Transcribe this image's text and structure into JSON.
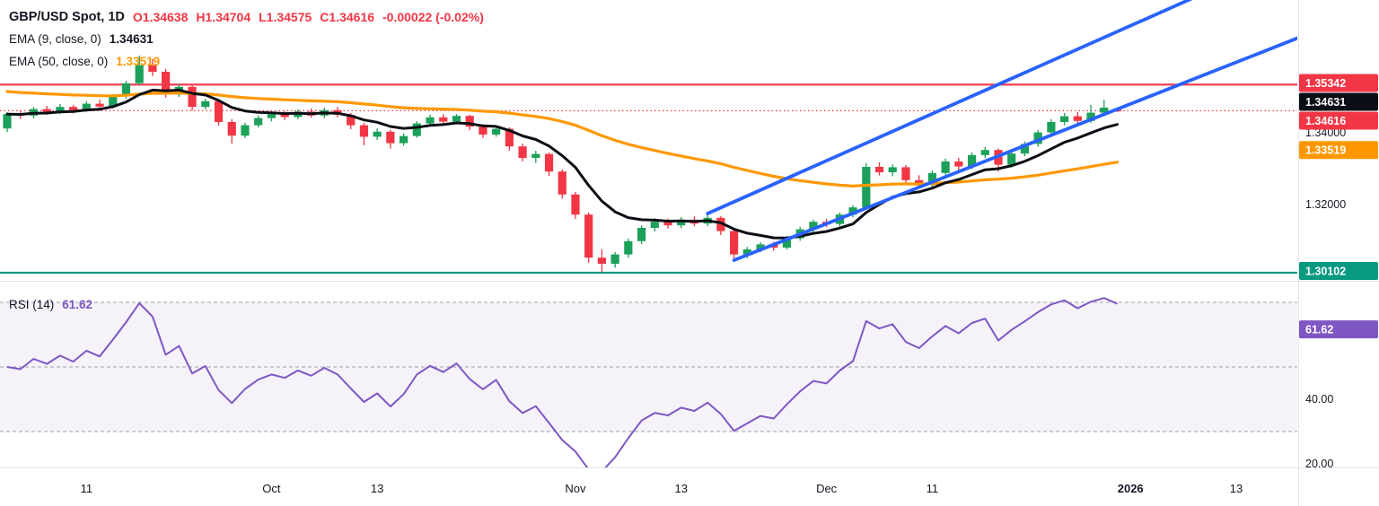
{
  "header": {
    "symbol": "GBP/USD Spot, 1D",
    "open": "O1.34638",
    "high": "H1.34704",
    "low": "L1.34575",
    "close": "C1.34616",
    "change": "-0.00022 (-0.02%)"
  },
  "indicators": {
    "ema9": {
      "label": "EMA (9, close, 0)",
      "value": "1.34631"
    },
    "ema50": {
      "label": "EMA (50, close, 0)",
      "value": "1.33519"
    },
    "rsi": {
      "label": "RSI (14)",
      "value": "61.62"
    }
  },
  "chart_data": {
    "type": "candlestick",
    "symbol": "GBP/USD Spot",
    "timeframe": "1D",
    "colors": {
      "up": "#1da05a",
      "down": "#f23645",
      "ema9": "#0c0e15",
      "ema50": "#ff9800",
      "rsi": "#7e57c2",
      "trend": "#2962ff"
    },
    "y_ticks": [
      {
        "label": "1.34000",
        "price": 1.34
      },
      {
        "label": "1.32000",
        "price": 1.32
      }
    ],
    "price_labels": [
      {
        "text": "1.35342",
        "price": 1.35342,
        "color": "#f23645"
      },
      {
        "text": "1.34631",
        "price": 1.34631,
        "color": "#0c0e15"
      },
      {
        "text": "1.34616",
        "price": 1.34616,
        "color": "#f23645"
      },
      {
        "text": "1.33519",
        "price": 1.33519,
        "color": "#ff9800"
      },
      {
        "text": "1.30102",
        "price": 1.30102,
        "color": "#089981"
      }
    ],
    "levels": [
      {
        "name": "resistance-line",
        "price": 1.35342,
        "color": "#f23645",
        "style": "solid"
      },
      {
        "name": "last-price-line",
        "price": 1.34616,
        "color": "#f23645",
        "style": "dotted"
      },
      {
        "name": "support-line",
        "price": 1.30102,
        "color": "#089981",
        "style": "solid"
      }
    ],
    "trendlines": [
      {
        "name": "channel-upper-trendline",
        "color": "#2962ff",
        "i1": 53,
        "p1": 1.3175,
        "i2": 90,
        "p2": 1.378
      },
      {
        "name": "channel-lower-trendline",
        "color": "#2962ff",
        "i1": 55,
        "p1": 1.3045,
        "i2": 98,
        "p2": 1.3669
      }
    ],
    "x_ticks": [
      {
        "label": "11",
        "i": 6
      },
      {
        "label": "Oct",
        "i": 20
      },
      {
        "label": "13",
        "i": 28
      },
      {
        "label": "Nov",
        "i": 43
      },
      {
        "label": "13",
        "i": 51
      },
      {
        "label": "Dec",
        "i": 62
      },
      {
        "label": "11",
        "i": 70
      },
      {
        "label": "2026",
        "i": 85,
        "strong": true
      },
      {
        "label": "13",
        "i": 93
      }
    ],
    "ema_periods": [
      9,
      50
    ],
    "rsi": {
      "period": 14,
      "band": [
        30,
        70
      ],
      "guides": [
        30,
        50,
        70
      ],
      "ticks": [
        {
          "label": "40.00",
          "value": 40
        },
        {
          "label": "20.00",
          "value": 20
        }
      ],
      "label_box": {
        "text": "61.62",
        "value": 61.62
      }
    },
    "candles": [
      [
        1.3412,
        1.3458,
        1.3402,
        1.3452
      ],
      [
        1.3452,
        1.3462,
        1.3438,
        1.3448
      ],
      [
        1.3448,
        1.3472,
        1.344,
        1.3466
      ],
      [
        1.3466,
        1.3475,
        1.345,
        1.3458
      ],
      [
        1.3458,
        1.348,
        1.3452,
        1.3472
      ],
      [
        1.3472,
        1.3478,
        1.3454,
        1.3463
      ],
      [
        1.3463,
        1.3488,
        1.3458,
        1.3481
      ],
      [
        1.3481,
        1.3492,
        1.3465,
        1.3473
      ],
      [
        1.3473,
        1.3508,
        1.3468,
        1.3502
      ],
      [
        1.3502,
        1.3545,
        1.3495,
        1.3538
      ],
      [
        1.3538,
        1.3615,
        1.3532,
        1.3588
      ],
      [
        1.3588,
        1.3605,
        1.3558,
        1.357
      ],
      [
        1.357,
        1.3578,
        1.3498,
        1.3508
      ],
      [
        1.3508,
        1.3535,
        1.35,
        1.3528
      ],
      [
        1.3528,
        1.3532,
        1.3462,
        1.3472
      ],
      [
        1.3472,
        1.3495,
        1.3465,
        1.3488
      ],
      [
        1.3488,
        1.3492,
        1.342,
        1.343
      ],
      [
        1.343,
        1.3438,
        1.337,
        1.3392
      ],
      [
        1.3392,
        1.3428,
        1.3385,
        1.3421
      ],
      [
        1.3421,
        1.3448,
        1.3415,
        1.3441
      ],
      [
        1.3441,
        1.3458,
        1.3432,
        1.3452
      ],
      [
        1.3452,
        1.346,
        1.3436,
        1.3444
      ],
      [
        1.3444,
        1.3465,
        1.3438,
        1.3459
      ],
      [
        1.3459,
        1.3468,
        1.3442,
        1.3448
      ],
      [
        1.3448,
        1.347,
        1.3441,
        1.3463
      ],
      [
        1.3463,
        1.3472,
        1.3443,
        1.345
      ],
      [
        1.345,
        1.3455,
        1.341,
        1.3421
      ],
      [
        1.3421,
        1.3428,
        1.3365,
        1.3389
      ],
      [
        1.3389,
        1.3412,
        1.338,
        1.3403
      ],
      [
        1.3403,
        1.3408,
        1.3356,
        1.3371
      ],
      [
        1.3371,
        1.3398,
        1.3364,
        1.3391
      ],
      [
        1.3391,
        1.3432,
        1.3386,
        1.3426
      ],
      [
        1.3426,
        1.345,
        1.3419,
        1.3443
      ],
      [
        1.3443,
        1.3452,
        1.3421,
        1.3431
      ],
      [
        1.3431,
        1.3452,
        1.3424,
        1.3447
      ],
      [
        1.3447,
        1.345,
        1.3407,
        1.3417
      ],
      [
        1.3417,
        1.3424,
        1.3386,
        1.3395
      ],
      [
        1.3395,
        1.3418,
        1.3389,
        1.3411
      ],
      [
        1.3411,
        1.3415,
        1.335,
        1.3362
      ],
      [
        1.3362,
        1.337,
        1.332,
        1.333
      ],
      [
        1.333,
        1.335,
        1.3316,
        1.3341
      ],
      [
        1.3341,
        1.3345,
        1.328,
        1.3292
      ],
      [
        1.3292,
        1.3298,
        1.3216,
        1.3228
      ],
      [
        1.3228,
        1.3235,
        1.316,
        1.3172
      ],
      [
        1.3172,
        1.3178,
        1.3038,
        1.3052
      ],
      [
        1.3052,
        1.3075,
        1.3012,
        1.3035
      ],
      [
        1.3035,
        1.3068,
        1.3024,
        1.3061
      ],
      [
        1.3061,
        1.3105,
        1.3052,
        1.3098
      ],
      [
        1.3098,
        1.3142,
        1.309,
        1.3135
      ],
      [
        1.3135,
        1.3162,
        1.3125,
        1.3152
      ],
      [
        1.3152,
        1.3161,
        1.3133,
        1.3142
      ],
      [
        1.3142,
        1.3165,
        1.3134,
        1.3158
      ],
      [
        1.3158,
        1.3168,
        1.3139,
        1.3147
      ],
      [
        1.3147,
        1.317,
        1.314,
        1.3163
      ],
      [
        1.3163,
        1.3168,
        1.3115,
        1.3126
      ],
      [
        1.3126,
        1.3131,
        1.3048,
        1.3061
      ],
      [
        1.3061,
        1.3082,
        1.3051,
        1.3075
      ],
      [
        1.3075,
        1.3095,
        1.3067,
        1.3089
      ],
      [
        1.3089,
        1.3096,
        1.3071,
        1.308
      ],
      [
        1.308,
        1.3112,
        1.3074,
        1.3106
      ],
      [
        1.3106,
        1.3138,
        1.3099,
        1.3131
      ],
      [
        1.3131,
        1.3158,
        1.3124,
        1.3152
      ],
      [
        1.3152,
        1.316,
        1.3137,
        1.3146
      ],
      [
        1.3146,
        1.3178,
        1.3139,
        1.3172
      ],
      [
        1.3172,
        1.3198,
        1.3164,
        1.3192
      ],
      [
        1.3192,
        1.3315,
        1.3186,
        1.3305
      ],
      [
        1.3305,
        1.3318,
        1.3281,
        1.329
      ],
      [
        1.329,
        1.3312,
        1.3279,
        1.3304
      ],
      [
        1.3304,
        1.331,
        1.3256,
        1.3268
      ],
      [
        1.3268,
        1.3282,
        1.3244,
        1.3255
      ],
      [
        1.3255,
        1.3295,
        1.3247,
        1.3288
      ],
      [
        1.3288,
        1.3328,
        1.328,
        1.332
      ],
      [
        1.332,
        1.333,
        1.3296,
        1.3306
      ],
      [
        1.3306,
        1.3345,
        1.3299,
        1.3338
      ],
      [
        1.3338,
        1.336,
        1.3329,
        1.3352
      ],
      [
        1.3352,
        1.3356,
        1.3292,
        1.3311
      ],
      [
        1.3311,
        1.3348,
        1.3303,
        1.3342
      ],
      [
        1.3342,
        1.3376,
        1.3335,
        1.3369
      ],
      [
        1.3369,
        1.3408,
        1.3361,
        1.3401
      ],
      [
        1.3401,
        1.3438,
        1.3394,
        1.343
      ],
      [
        1.343,
        1.3455,
        1.3421,
        1.3446
      ],
      [
        1.3446,
        1.3458,
        1.3424,
        1.3433
      ],
      [
        1.3433,
        1.3478,
        1.3427,
        1.3456
      ],
      [
        1.3456,
        1.3492,
        1.3447,
        1.347
      ],
      [
        1.34638,
        1.34704,
        1.34575,
        1.34616
      ]
    ]
  }
}
